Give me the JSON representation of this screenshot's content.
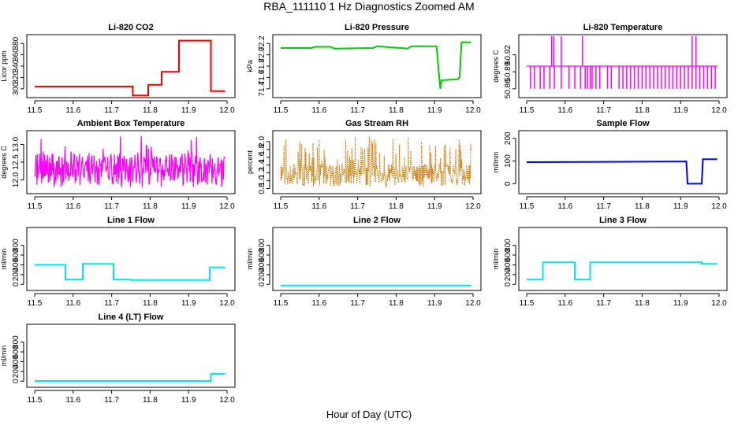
{
  "page_title": "RBA_111110  1 Hz Diagnostics Zoomed AM",
  "shared_xlabel": "Hour of Day (UTC)",
  "chart_data": [
    {
      "id": "co2",
      "type": "line",
      "title": "Li-820 CO2",
      "ylabel": "Licor ppm",
      "color": "#ee0000",
      "xlim": [
        11.5,
        12.0
      ],
      "ylim": [
        290,
        390
      ],
      "xticks": [
        11.5,
        11.6,
        11.7,
        11.8,
        11.9,
        12.0
      ],
      "yticks": [
        300,
        320,
        340,
        360,
        380
      ],
      "series": [
        {
          "name": "CO2",
          "x": [
            11.5,
            11.755,
            11.755,
            11.795,
            11.795,
            11.83,
            11.83,
            11.875,
            11.875,
            11.958,
            11.958,
            11.995
          ],
          "y": [
            304,
            304,
            288,
            288,
            307,
            307,
            330,
            330,
            385,
            385,
            296,
            296
          ]
        }
      ]
    },
    {
      "id": "pressure",
      "type": "line",
      "title": "Li-820 Pressure",
      "ylabel": "kPa",
      "color": "#00cc00",
      "xlim": [
        11.5,
        12.0
      ],
      "ylim": [
        71.3,
        72.3
      ],
      "xticks": [
        11.5,
        11.6,
        11.7,
        11.8,
        11.9,
        12.0
      ],
      "yticks": [
        71.4,
        71.6,
        71.8,
        72.0,
        72.2
      ],
      "series": [
        {
          "name": "Pressure",
          "x": [
            11.5,
            11.58,
            11.59,
            11.63,
            11.64,
            11.74,
            11.75,
            11.83,
            11.84,
            11.905,
            11.912,
            11.915,
            11.918,
            11.96,
            11.965,
            11.97,
            11.995
          ],
          "y": [
            72.12,
            72.12,
            72.14,
            72.14,
            72.11,
            72.12,
            72.15,
            72.11,
            72.15,
            72.15,
            71.6,
            71.4,
            71.55,
            71.57,
            71.6,
            72.22,
            72.22
          ]
        }
      ]
    },
    {
      "id": "licor_temp",
      "type": "line",
      "title": "Li-820 Temperature",
      "ylabel": "degrees C",
      "color": "#ff00ff",
      "xlim": [
        11.5,
        12.0
      ],
      "ylim": [
        50.85,
        50.95
      ],
      "xticks": [
        11.5,
        11.6,
        11.7,
        11.8,
        11.9,
        12.0
      ],
      "yticks": [
        50.86,
        50.89,
        50.92
      ],
      "baseline": 50.9,
      "low": 50.86,
      "high": 50.95,
      "spikes_low": [
        11.51,
        11.52,
        11.535,
        11.545,
        11.56,
        11.572,
        11.59,
        11.61,
        11.625,
        11.64,
        11.652,
        11.658,
        11.665,
        11.67,
        11.68,
        11.69,
        11.71,
        11.72,
        11.74,
        11.75,
        11.76,
        11.77,
        11.78,
        11.79,
        11.8,
        11.81,
        11.82,
        11.83,
        11.84,
        11.85,
        11.86,
        11.87,
        11.88,
        11.89,
        11.9,
        11.91,
        11.92,
        11.93,
        11.94,
        11.95,
        11.96,
        11.97,
        11.98,
        11.99
      ],
      "spikes_high": [
        11.565,
        11.57,
        11.59,
        11.645,
        11.93,
        11.94
      ]
    },
    {
      "id": "box_temp",
      "type": "line",
      "title": "Ambient Box Temperature",
      "ylabel": "degrees C",
      "color": "#ff00ff",
      "xlim": [
        11.5,
        12.0
      ],
      "ylim": [
        11.7,
        13.3
      ],
      "xticks": [
        11.5,
        11.6,
        11.7,
        11.8,
        11.9,
        12.0
      ],
      "yticks": [
        12.0,
        12.5,
        13.0
      ],
      "noise": {
        "center": 12.3,
        "amplitude": 0.45
      }
    },
    {
      "id": "rh",
      "type": "line",
      "title": "Gas Stream RH",
      "ylabel": "percent",
      "color": "#cc7700",
      "xlim": [
        11.5,
        12.0
      ],
      "ylim": [
        0.75,
        2.2
      ],
      "xticks": [
        11.5,
        11.6,
        11.7,
        11.8,
        11.9,
        12.0
      ],
      "yticks": [
        0.8,
        1.0,
        1.2,
        1.4,
        1.6,
        1.8,
        2.0
      ],
      "noise": {
        "min": 0.85,
        "max": 2.15
      }
    },
    {
      "id": "sample_flow",
      "type": "line",
      "title": "Sample Flow",
      "ylabel": "ml/min",
      "color": "#0000ee",
      "xlim": [
        11.5,
        12.0
      ],
      "ylim": [
        -30,
        220
      ],
      "xticks": [
        11.5,
        11.6,
        11.7,
        11.8,
        11.9,
        12.0
      ],
      "yticks": [
        0,
        100,
        200
      ],
      "series": [
        {
          "name": "Sample Flow",
          "x": [
            11.5,
            11.915,
            11.918,
            11.955,
            11.958,
            11.995
          ],
          "y": [
            95,
            98,
            0,
            0,
            108,
            108
          ]
        }
      ]
    },
    {
      "id": "line1",
      "type": "line",
      "title": "Line 1 Flow",
      "ylabel": "ml/min",
      "color": "#00e5ee",
      "xlim": [
        11.5,
        12.0
      ],
      "ylim": [
        -60,
        1100
      ],
      "xticks": [
        11.5,
        11.6,
        11.7,
        11.8,
        11.9,
        12.0
      ],
      "yticks": [
        0,
        200,
        400,
        600,
        800
      ],
      "series": [
        {
          "name": "Line 1",
          "x": [
            11.5,
            11.58,
            11.58,
            11.625,
            11.625,
            11.705,
            11.705,
            11.75,
            11.75,
            11.955,
            11.955,
            11.995
          ],
          "y": [
            400,
            400,
            100,
            100,
            420,
            420,
            100,
            100,
            90,
            90,
            350,
            350
          ]
        }
      ]
    },
    {
      "id": "line2",
      "type": "line",
      "title": "Line 2 Flow",
      "ylabel": "ml/min",
      "color": "#00e5ee",
      "xlim": [
        11.5,
        12.0
      ],
      "ylim": [
        -60,
        1100
      ],
      "xticks": [
        11.5,
        11.6,
        11.7,
        11.8,
        11.9,
        12.0
      ],
      "yticks": [
        0,
        200,
        400,
        600,
        800
      ],
      "series": [
        {
          "name": "Line 2",
          "x": [
            11.5,
            11.995
          ],
          "y": [
            -25,
            -25
          ]
        }
      ]
    },
    {
      "id": "line3",
      "type": "line",
      "title": "Line 3 Flow",
      "ylabel": "ml/min",
      "color": "#00e5ee",
      "xlim": [
        11.5,
        12.0
      ],
      "ylim": [
        -60,
        1100
      ],
      "xticks": [
        11.5,
        11.6,
        11.7,
        11.8,
        11.9,
        12.0
      ],
      "yticks": [
        0,
        200,
        400,
        600,
        800
      ],
      "series": [
        {
          "name": "Line 3",
          "x": [
            11.5,
            11.542,
            11.542,
            11.625,
            11.625,
            11.665,
            11.665,
            11.955,
            11.955,
            11.995
          ],
          "y": [
            100,
            100,
            450,
            450,
            100,
            100,
            450,
            450,
            420,
            420
          ]
        }
      ]
    },
    {
      "id": "line4",
      "type": "line",
      "title": "Line 4 (LT) Flow",
      "ylabel": "ml/min",
      "color": "#00e5ee",
      "xlim": [
        11.5,
        12.0
      ],
      "ylim": [
        -60,
        1100
      ],
      "xticks": [
        11.5,
        11.6,
        11.7,
        11.8,
        11.9,
        12.0
      ],
      "yticks": [
        0,
        200,
        400,
        600,
        800
      ],
      "series": [
        {
          "name": "Line 4",
          "x": [
            11.5,
            11.958,
            11.958,
            11.995
          ],
          "y": [
            5,
            5,
            150,
            150
          ]
        }
      ]
    }
  ]
}
